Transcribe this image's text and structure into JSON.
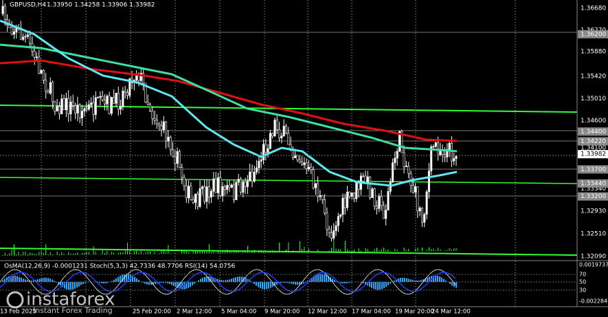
{
  "header": {
    "title": "GBPUSD,H4",
    "ohlc": "1.33950 1.34258 1.33906 1.33982"
  },
  "price_axis": [
    "1.36680",
    "1.36270",
    "1.35880",
    "1.35420",
    "1.35010",
    "1.34600",
    "1.34100",
    "1.33340",
    "1.32930",
    "1.32510",
    "1.32090"
  ],
  "price_tags": [
    "1.36200",
    "1.34400",
    "1.34220",
    "1.33700",
    "1.33440",
    "1.33200"
  ],
  "current_price": "1.33982",
  "indicator": {
    "title": "OsMA(12,26,9) -0.0001231 Stoch(5,3,3) 42.7336 48.7706 RSI(14) 54.0756",
    "axis": [
      "0.0019737",
      "70",
      "50",
      "30",
      "-0.002284"
    ]
  },
  "time_axis": [
    "13 Feb 2025",
    "25 Feb 20:00",
    "2 Mar 12:00",
    "5 Mar 04:00",
    "9 Mar 20:00",
    "12 Mar 12:00",
    "17 Mar 04:00",
    "19 Mar 20:00",
    "24 Mar 12:00"
  ],
  "watermark": {
    "brand": "instaforex",
    "slogan": "Instant Forex Trading"
  }
}
